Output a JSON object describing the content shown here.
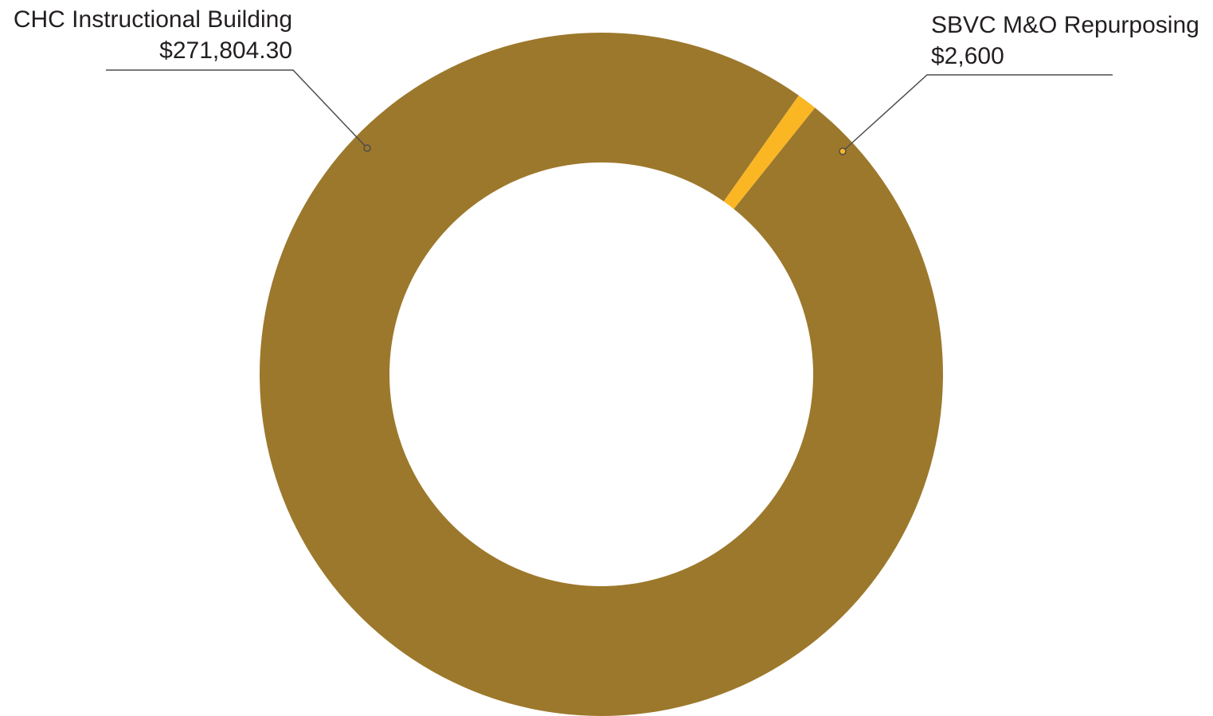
{
  "chart_data": {
    "type": "pie",
    "style": "donut",
    "slices": [
      {
        "label": "CHC Instructional Building",
        "value": 271804.3,
        "display_value": "$271,804.30",
        "color": "#9c782c"
      },
      {
        "label": "SBVC M&O Repurposing",
        "value": 2600,
        "display_value": "$2,600",
        "color": "#fbb623"
      }
    ],
    "leader_line_color": "#4d4d4d"
  }
}
